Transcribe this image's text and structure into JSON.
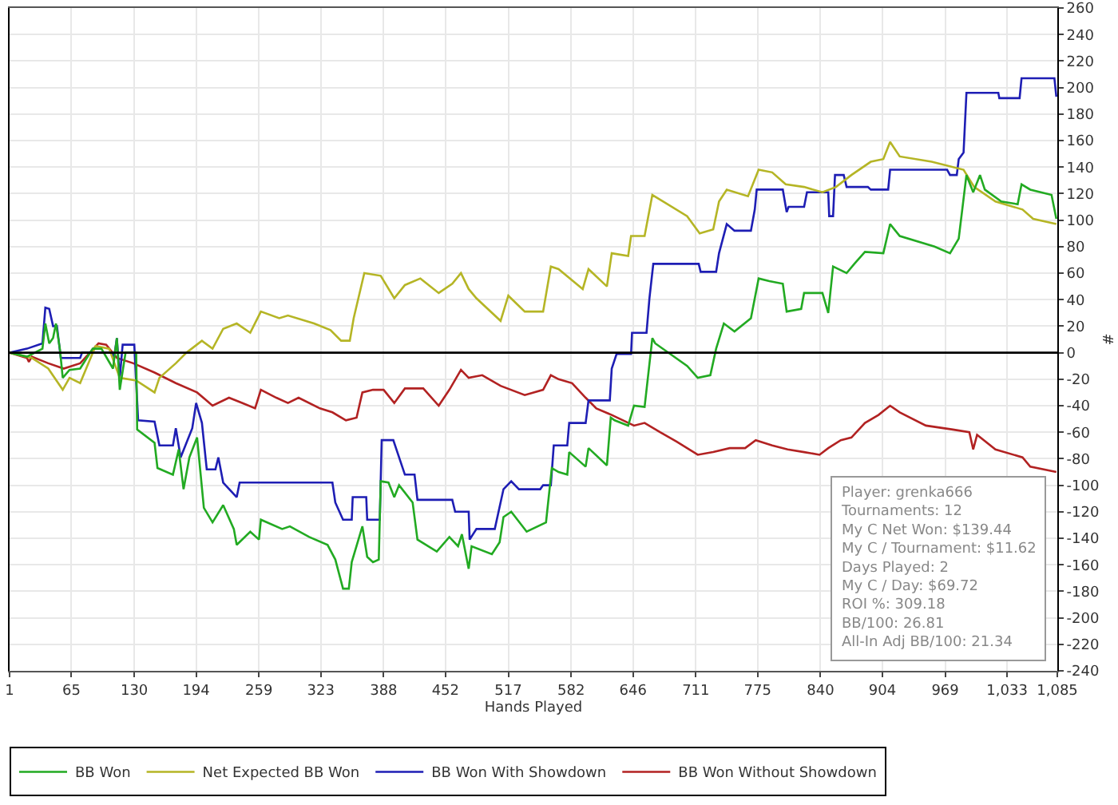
{
  "chart_data": {
    "type": "line",
    "xlabel": "Hands Played",
    "ylabel": "#",
    "xlim": [
      1,
      1085
    ],
    "xticks": [
      1,
      65,
      130,
      194,
      259,
      323,
      388,
      452,
      517,
      582,
      646,
      711,
      775,
      840,
      904,
      969,
      {
        "value": 1033,
        "label": "1,033"
      },
      {
        "value": 1085,
        "label": "1,085"
      }
    ],
    "ylim": [
      -240,
      260
    ],
    "yticks": [
      -240,
      -220,
      -200,
      -180,
      -160,
      -140,
      -120,
      -100,
      -80,
      -60,
      -40,
      -20,
      0,
      20,
      40,
      60,
      80,
      100,
      120,
      140,
      160,
      180,
      200,
      220,
      240,
      260
    ],
    "grid": true,
    "legend": "bottom left",
    "marker": "none",
    "line_style": "solid",
    "ref_lines": [
      {
        "axis": "y",
        "value": 0,
        "color": "#000000"
      }
    ],
    "annotations": [
      "Player: grenka666",
      "Tournaments: 12",
      "My C Net Won: $139.44",
      "My C / Tournament: $11.62",
      "Days Played: 2",
      "My C / Day: $69.72",
      "ROI %: 309.18",
      "BB/100: 26.81",
      "All-In Adj BB/100: 21.34"
    ],
    "series": [
      {
        "name": "BB Won",
        "color": "#22aa22",
        "x": [
          1,
          19,
          35,
          38,
          42,
          46,
          49,
          53,
          56,
          63,
          74,
          87,
          96,
          108,
          112,
          115,
          121,
          132,
          133,
          151,
          154,
          170,
          176,
          181,
          187,
          195,
          202,
          211,
          222,
          233,
          236,
          250,
          259,
          261,
          283,
          291,
          311,
          330,
          338,
          346,
          352,
          355,
          366,
          371,
          377,
          383,
          385,
          393,
          399,
          404,
          418,
          423,
          443,
          456,
          465,
          469,
          476,
          479,
          500,
          508,
          512,
          520,
          536,
          556,
          562,
          569,
          578,
          580,
          597,
          600,
          619,
          623,
          627,
          641,
          647,
          658,
          666,
          669,
          702,
          713,
          726,
          732,
          740,
          751,
          768,
          776,
          787,
          801,
          805,
          820,
          823,
          842,
          848,
          853,
          867,
          875,
          886,
          905,
          912,
          922,
          958,
          974,
          983,
          991,
          998,
          1005,
          1010,
          1027,
          1044,
          1048,
          1057,
          1079,
          1084
        ],
        "values": [
          0,
          -3,
          3,
          22,
          7,
          11,
          22,
          3,
          -19,
          -13,
          -12,
          3,
          3,
          -12,
          11,
          -28,
          0,
          0,
          -58,
          -68,
          -87,
          -92,
          -73,
          -103,
          -79,
          -64,
          -117,
          -128,
          -115,
          -133,
          -145,
          -135,
          -141,
          -126,
          -133,
          -131,
          -139,
          -145,
          -156,
          -178,
          -178,
          -158,
          -131,
          -154,
          -158,
          -156,
          -97,
          -98,
          -109,
          -100,
          -113,
          -141,
          -150,
          -139,
          -146,
          -137,
          -163,
          -146,
          -152,
          -143,
          -124,
          -120,
          -135,
          -128,
          -87,
          -90,
          -92,
          -75,
          -86,
          -72,
          -85,
          -49,
          -51,
          -55,
          -40,
          -41,
          11,
          7,
          -10,
          -19,
          -17,
          3,
          22,
          16,
          26,
          56,
          54,
          52,
          31,
          33,
          45,
          45,
          30,
          65,
          60,
          67,
          76,
          75,
          97,
          88,
          80,
          75,
          86,
          134,
          121,
          134,
          123,
          114,
          112,
          127,
          123,
          119,
          101
        ]
      },
      {
        "name": "Net Expected BB Won",
        "color": "#b5b525",
        "x": [
          1,
          24,
          41,
          56,
          63,
          74,
          90,
          104,
          115,
          132,
          151,
          156,
          173,
          184,
          200,
          211,
          222,
          236,
          250,
          261,
          280,
          289,
          316,
          333,
          344,
          353,
          357,
          368,
          385,
          399,
          410,
          426,
          445,
          459,
          468,
          476,
          484,
          509,
          517,
          534,
          553,
          561,
          569,
          594,
          600,
          619,
          624,
          641,
          644,
          658,
          666,
          702,
          715,
          729,
          735,
          743,
          765,
          776,
          790,
          804,
          823,
          842,
          856,
          872,
          892,
          905,
          912,
          922,
          955,
          988,
          999,
          1021,
          1049,
          1060,
          1084
        ],
        "values": [
          0,
          -4,
          -12,
          -28,
          -19,
          -23,
          5,
          3,
          -19,
          -21,
          -30,
          -19,
          -8,
          0,
          9,
          3,
          18,
          22,
          15,
          31,
          26,
          28,
          22,
          17,
          9,
          9,
          26,
          60,
          58,
          41,
          51,
          56,
          45,
          52,
          60,
          48,
          41,
          24,
          43,
          31,
          31,
          65,
          63,
          48,
          63,
          50,
          75,
          73,
          88,
          88,
          119,
          103,
          90,
          93,
          114,
          123,
          118,
          138,
          136,
          127,
          125,
          121,
          125,
          134,
          144,
          146,
          159,
          148,
          144,
          138,
          125,
          114,
          108,
          101,
          97
        ]
      },
      {
        "name": "BB Won With Showdown",
        "color": "#1e1eb4",
        "x": [
          1,
          19,
          35,
          38,
          42,
          46,
          50,
          54,
          74,
          76,
          107,
          109,
          112,
          115,
          118,
          130,
          134,
          151,
          156,
          170,
          173,
          178,
          190,
          194,
          200,
          205,
          214,
          217,
          222,
          236,
          239,
          335,
          338,
          346,
          355,
          356,
          370,
          371,
          384,
          386,
          398,
          410,
          420,
          423,
          459,
          462,
          476,
          477,
          484,
          503,
          512,
          520,
          528,
          550,
          553,
          561,
          564,
          578,
          580,
          597,
          600,
          622,
          624,
          629,
          644,
          645,
          660,
          663,
          667,
          714,
          716,
          732,
          735,
          743,
          751,
          768,
          772,
          774,
          801,
          805,
          807,
          823,
          826,
          848,
          849,
          853,
          855,
          864,
          867,
          889,
          892,
          910,
          912,
          971,
          974,
          981,
          983,
          988,
          991,
          1024,
          1025,
          1046,
          1048,
          1082,
          1084
        ],
        "values": [
          0,
          3,
          7,
          34,
          33,
          20,
          20,
          -4,
          -4,
          0,
          0,
          -4,
          11,
          -19,
          6,
          6,
          -51,
          -52,
          -70,
          -70,
          -57,
          -79,
          -57,
          -38,
          -53,
          -88,
          -88,
          -79,
          -98,
          -109,
          -98,
          -98,
          -113,
          -126,
          -126,
          -109,
          -109,
          -126,
          -126,
          -66,
          -66,
          -92,
          -92,
          -111,
          -111,
          -120,
          -120,
          -141,
          -133,
          -133,
          -103,
          -97,
          -103,
          -103,
          -100,
          -100,
          -70,
          -70,
          -53,
          -53,
          -36,
          -36,
          -12,
          -1,
          -1,
          15,
          15,
          41,
          67,
          67,
          61,
          61,
          75,
          97,
          92,
          92,
          108,
          123,
          123,
          106,
          110,
          110,
          121,
          121,
          103,
          103,
          134,
          134,
          125,
          125,
          123,
          123,
          138,
          138,
          134,
          134,
          146,
          151,
          196,
          196,
          192,
          192,
          207,
          207,
          193
        ]
      },
      {
        "name": "BB Won Without Showdown",
        "color": "#b22222",
        "x": [
          1,
          19,
          21,
          24,
          41,
          57,
          74,
          93,
          101,
          112,
          129,
          151,
          173,
          195,
          211,
          228,
          242,
          255,
          261,
          277,
          289,
          300,
          322,
          335,
          349,
          360,
          366,
          377,
          388,
          399,
          410,
          429,
          445,
          456,
          468,
          476,
          490,
          509,
          534,
          553,
          561,
          569,
          583,
          597,
          608,
          624,
          647,
          658,
          674,
          691,
          713,
          729,
          746,
          762,
          773,
          790,
          806,
          823,
          839,
          848,
          861,
          872,
          886,
          900,
          912,
          922,
          949,
          977,
          994,
          998,
          1002,
          1021,
          1049,
          1057,
          1084
        ],
        "values": [
          0,
          -4,
          -7,
          -3,
          -8,
          -12,
          -8,
          7,
          6,
          -4,
          -8,
          -15,
          -23,
          -30,
          -40,
          -34,
          -38,
          -42,
          -28,
          -34,
          -38,
          -34,
          -42,
          -45,
          -51,
          -49,
          -30,
          -28,
          -28,
          -38,
          -27,
          -27,
          -40,
          -28,
          -13,
          -19,
          -17,
          -25,
          -32,
          -28,
          -17,
          -20,
          -23,
          -34,
          -42,
          -47,
          -55,
          -53,
          -60,
          -67,
          -77,
          -75,
          -72,
          -72,
          -66,
          -70,
          -73,
          -75,
          -77,
          -72,
          -66,
          -64,
          -53,
          -47,
          -40,
          -45,
          -55,
          -58,
          -60,
          -73,
          -62,
          -73,
          -79,
          -86,
          -90
        ]
      }
    ]
  }
}
